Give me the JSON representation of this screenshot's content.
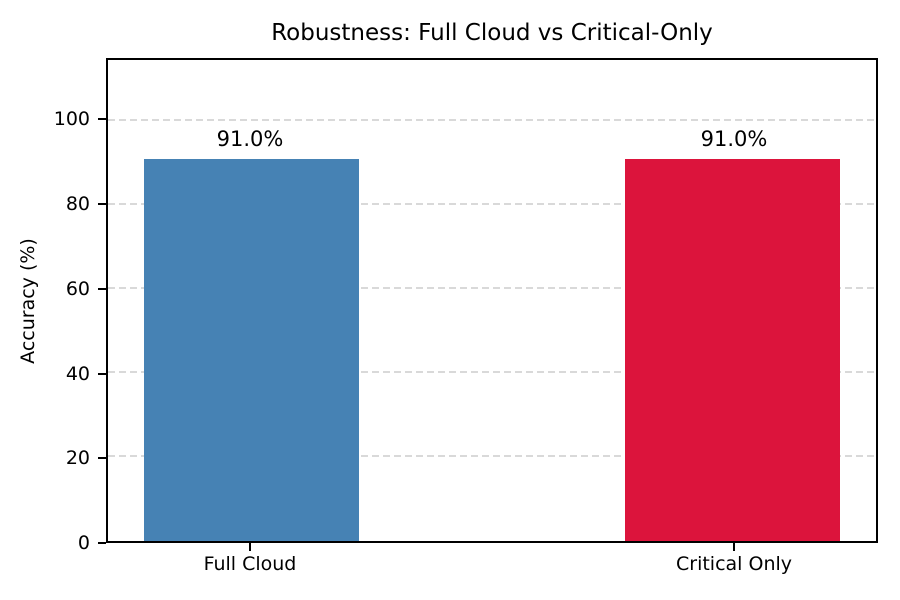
{
  "chart_data": {
    "type": "bar",
    "title": "Robustness: Full Cloud vs Critical-Only",
    "ylabel": "Accuracy (%)",
    "xlabel": "",
    "categories": [
      "Full Cloud",
      "Critical Only"
    ],
    "values": [
      91.0,
      91.0
    ],
    "value_labels": [
      "91.0%",
      "91.0%"
    ],
    "bar_colors": [
      "#4682B4",
      "#DC143C"
    ],
    "yticks": [
      0,
      20,
      40,
      60,
      80,
      100
    ],
    "ylim": [
      0,
      114.5
    ],
    "grid": {
      "axis": "y",
      "style": "dashed",
      "color": "#d9d9d9"
    },
    "legend": "none",
    "background_color": "#ffffff",
    "spine_color": "#000000"
  }
}
